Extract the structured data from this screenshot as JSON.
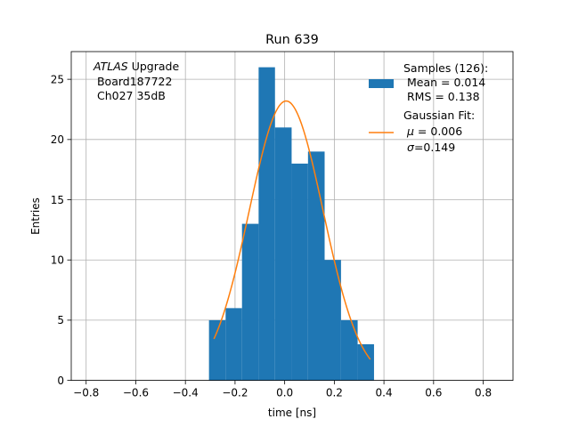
{
  "chart_data": {
    "type": "bar",
    "title": "Run 639",
    "xlabel": "time [ns]",
    "ylabel": "Entries",
    "xlim": [
      -0.86,
      0.92
    ],
    "ylim": [
      0,
      27.3
    ],
    "grid": true,
    "xticks": [
      -0.8,
      -0.6,
      -0.4,
      -0.2,
      0.0,
      0.2,
      0.4,
      0.6,
      0.8
    ],
    "xtick_labels": [
      "−0.8",
      "−0.6",
      "−0.4",
      "−0.2",
      "0.0",
      "0.2",
      "0.4",
      "0.6",
      "0.8"
    ],
    "yticks": [
      0,
      5,
      10,
      15,
      20,
      25
    ],
    "ytick_labels": [
      "0",
      "5",
      "10",
      "15",
      "20",
      "25"
    ],
    "histogram": {
      "bin_edges": [
        -0.305,
        -0.238,
        -0.172,
        -0.105,
        -0.039,
        0.028,
        0.094,
        0.161,
        0.227,
        0.294,
        0.36
      ],
      "counts": [
        5,
        6,
        13,
        26,
        21,
        18,
        19,
        10,
        5,
        3
      ],
      "color": "#1f77b4"
    },
    "fit": {
      "mu": 0.006,
      "sigma": 0.149,
      "amplitude": 23.2,
      "x_range": [
        -0.285,
        0.345
      ],
      "color": "#ff7f0e"
    },
    "annotation": {
      "experiment": "ATLAS",
      "line1_rest": " Upgrade",
      "line2": " Board187722",
      "line3": " Ch027 35dB"
    },
    "legend": {
      "position": "top-right",
      "samples_title": "Samples (126):",
      "samples_mean": " Mean = 0.014",
      "samples_rms": " RMS = 0.138",
      "fit_title": "Gaussian Fit:",
      "fit_mu_symbol": "μ",
      "fit_mu_value": " = 0.006",
      "fit_sigma_symbol": "σ",
      "fit_sigma_value": "=0.149"
    }
  }
}
